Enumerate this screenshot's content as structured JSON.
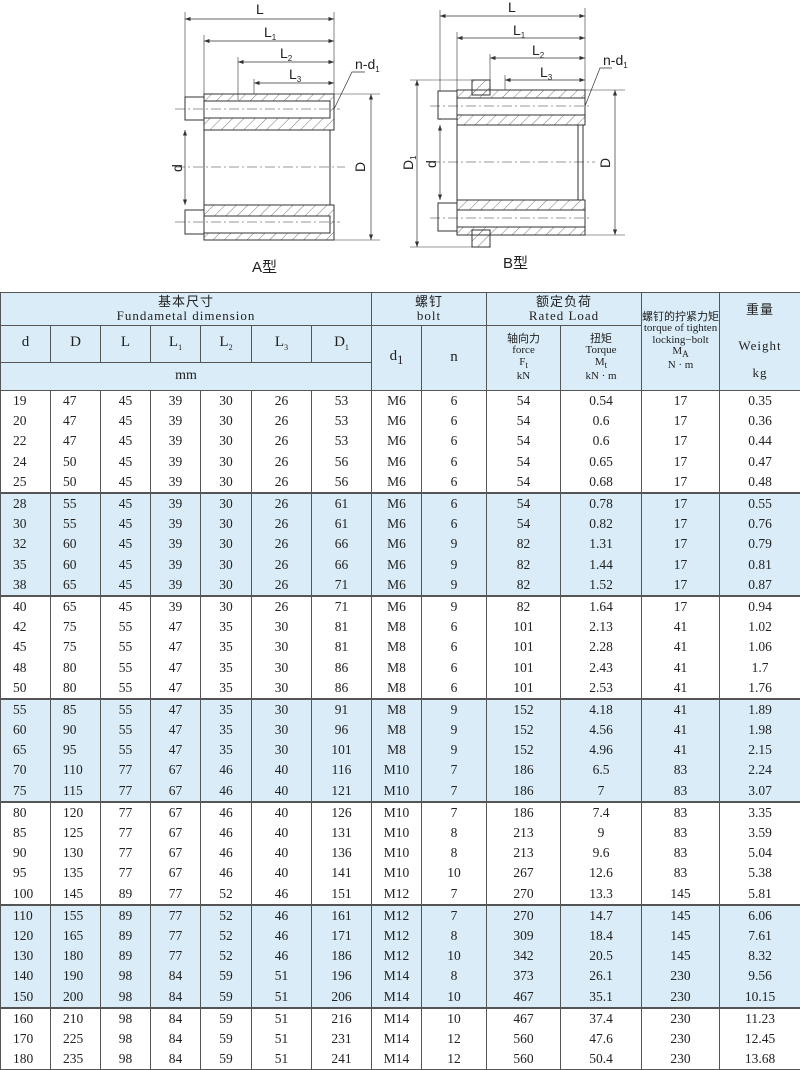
{
  "drawing": {
    "labels": {
      "L": "L",
      "L1": "L",
      "L1_sub": "1",
      "L2": "L",
      "L2_sub": "2",
      "L3": "L",
      "L3_sub": "3",
      "nd1": "n-d",
      "nd1_sub": "1",
      "d": "d",
      "D": "D",
      "D1": "D",
      "D1_sub": "1"
    },
    "type_a": "A型",
    "type_b": "B型"
  },
  "table": {
    "header": {
      "fundamental_cn": "基本尺寸",
      "fundamental_en": "Fundametal  dimension",
      "bolt_cn": "螺钉",
      "bolt_en": "bolt",
      "rated_cn": "额定负荷",
      "rated_en": "Rated  Load",
      "torque_cn": "螺钉的拧紧力矩",
      "torque_en": "torque of tighten locking−bolt",
      "torque_sym": "M",
      "torque_sym_sub": "A",
      "torque_unit": "N · m",
      "weight_cn": "重量",
      "weight_en": "Weight",
      "weight_unit": "kg",
      "cols": [
        "d",
        "D",
        "L",
        "L",
        "L",
        "L",
        "D"
      ],
      "col_subs": [
        "",
        "",
        "",
        "1",
        "2",
        "3",
        "1"
      ],
      "mm": "mm",
      "d1": "d",
      "d1_sub": "1",
      "n": "n",
      "force_cn": "轴向力",
      "force_en": "force",
      "force_sym": "F",
      "force_sym_sub": "t",
      "force_unit": "kN",
      "tq_cn": "扭矩",
      "tq_en": "Torque",
      "tq_sym": "M",
      "tq_sym_sub": "t",
      "tq_unit": "kN · m"
    },
    "accent_color": "#d9ecf7",
    "rows": [
      [
        "19",
        "47",
        "45",
        "39",
        "30",
        "26",
        "53",
        "M6",
        "6",
        "54",
        "0.54",
        "17",
        "0.35"
      ],
      [
        "20",
        "47",
        "45",
        "39",
        "30",
        "26",
        "53",
        "M6",
        "6",
        "54",
        "0.6",
        "17",
        "0.36"
      ],
      [
        "22",
        "47",
        "45",
        "39",
        "30",
        "26",
        "53",
        "M6",
        "6",
        "54",
        "0.6",
        "17",
        "0.44"
      ],
      [
        "24",
        "50",
        "45",
        "39",
        "30",
        "26",
        "56",
        "M6",
        "6",
        "54",
        "0.65",
        "17",
        "0.47"
      ],
      [
        "25",
        "50",
        "45",
        "39",
        "30",
        "26",
        "56",
        "M6",
        "6",
        "54",
        "0.68",
        "17",
        "0.48"
      ],
      [
        "28",
        "55",
        "45",
        "39",
        "30",
        "26",
        "61",
        "M6",
        "6",
        "54",
        "0.78",
        "17",
        "0.55"
      ],
      [
        "30",
        "55",
        "45",
        "39",
        "30",
        "26",
        "61",
        "M6",
        "6",
        "54",
        "0.82",
        "17",
        "0.76"
      ],
      [
        "32",
        "60",
        "45",
        "39",
        "30",
        "26",
        "66",
        "M6",
        "9",
        "82",
        "1.31",
        "17",
        "0.79"
      ],
      [
        "35",
        "60",
        "45",
        "39",
        "30",
        "26",
        "66",
        "M6",
        "9",
        "82",
        "1.44",
        "17",
        "0.81"
      ],
      [
        "38",
        "65",
        "45",
        "39",
        "30",
        "26",
        "71",
        "M6",
        "9",
        "82",
        "1.52",
        "17",
        "0.87"
      ],
      [
        "40",
        "65",
        "45",
        "39",
        "30",
        "26",
        "71",
        "M6",
        "9",
        "82",
        "1.64",
        "17",
        "0.94"
      ],
      [
        "42",
        "75",
        "55",
        "47",
        "35",
        "30",
        "81",
        "M8",
        "6",
        "101",
        "2.13",
        "41",
        "1.02"
      ],
      [
        "45",
        "75",
        "55",
        "47",
        "35",
        "30",
        "81",
        "M8",
        "6",
        "101",
        "2.28",
        "41",
        "1.06"
      ],
      [
        "48",
        "80",
        "55",
        "47",
        "35",
        "30",
        "86",
        "M8",
        "6",
        "101",
        "2.43",
        "41",
        "1.7"
      ],
      [
        "50",
        "80",
        "55",
        "47",
        "35",
        "30",
        "86",
        "M8",
        "6",
        "101",
        "2.53",
        "41",
        "1.76"
      ],
      [
        "55",
        "85",
        "55",
        "47",
        "35",
        "30",
        "91",
        "M8",
        "9",
        "152",
        "4.18",
        "41",
        "1.89"
      ],
      [
        "60",
        "90",
        "55",
        "47",
        "35",
        "30",
        "96",
        "M8",
        "9",
        "152",
        "4.56",
        "41",
        "1.98"
      ],
      [
        "65",
        "95",
        "55",
        "47",
        "35",
        "30",
        "101",
        "M8",
        "9",
        "152",
        "4.96",
        "41",
        "2.15"
      ],
      [
        "70",
        "110",
        "77",
        "67",
        "46",
        "40",
        "116",
        "M10",
        "7",
        "186",
        "6.5",
        "83",
        "2.24"
      ],
      [
        "75",
        "115",
        "77",
        "67",
        "46",
        "40",
        "121",
        "M10",
        "7",
        "186",
        "7",
        "83",
        "3.07"
      ],
      [
        "80",
        "120",
        "77",
        "67",
        "46",
        "40",
        "126",
        "M10",
        "7",
        "186",
        "7.4",
        "83",
        "3.35"
      ],
      [
        "85",
        "125",
        "77",
        "67",
        "46",
        "40",
        "131",
        "M10",
        "8",
        "213",
        "9",
        "83",
        "3.59"
      ],
      [
        "90",
        "130",
        "77",
        "67",
        "46",
        "40",
        "136",
        "M10",
        "8",
        "213",
        "9.6",
        "83",
        "5.04"
      ],
      [
        "95",
        "135",
        "77",
        "67",
        "46",
        "40",
        "141",
        "M10",
        "10",
        "267",
        "12.6",
        "83",
        "5.38"
      ],
      [
        "100",
        "145",
        "89",
        "77",
        "52",
        "46",
        "151",
        "M12",
        "7",
        "270",
        "13.3",
        "145",
        "5.81"
      ],
      [
        "110",
        "155",
        "89",
        "77",
        "52",
        "46",
        "161",
        "M12",
        "7",
        "270",
        "14.7",
        "145",
        "6.06"
      ],
      [
        "120",
        "165",
        "89",
        "77",
        "52",
        "46",
        "171",
        "M12",
        "8",
        "309",
        "18.4",
        "145",
        "7.61"
      ],
      [
        "130",
        "180",
        "89",
        "77",
        "52",
        "46",
        "186",
        "M12",
        "10",
        "342",
        "20.5",
        "145",
        "8.32"
      ],
      [
        "140",
        "190",
        "98",
        "84",
        "59",
        "51",
        "196",
        "M14",
        "8",
        "373",
        "26.1",
        "230",
        "9.56"
      ],
      [
        "150",
        "200",
        "98",
        "84",
        "59",
        "51",
        "206",
        "M14",
        "10",
        "467",
        "35.1",
        "230",
        "10.15"
      ],
      [
        "160",
        "210",
        "98",
        "84",
        "59",
        "51",
        "216",
        "M14",
        "10",
        "467",
        "37.4",
        "230",
        "11.23"
      ],
      [
        "170",
        "225",
        "98",
        "84",
        "59",
        "51",
        "231",
        "M14",
        "12",
        "560",
        "47.6",
        "230",
        "12.45"
      ],
      [
        "180",
        "235",
        "98",
        "84",
        "59",
        "51",
        "241",
        "M14",
        "12",
        "560",
        "50.4",
        "230",
        "13.68"
      ]
    ]
  }
}
